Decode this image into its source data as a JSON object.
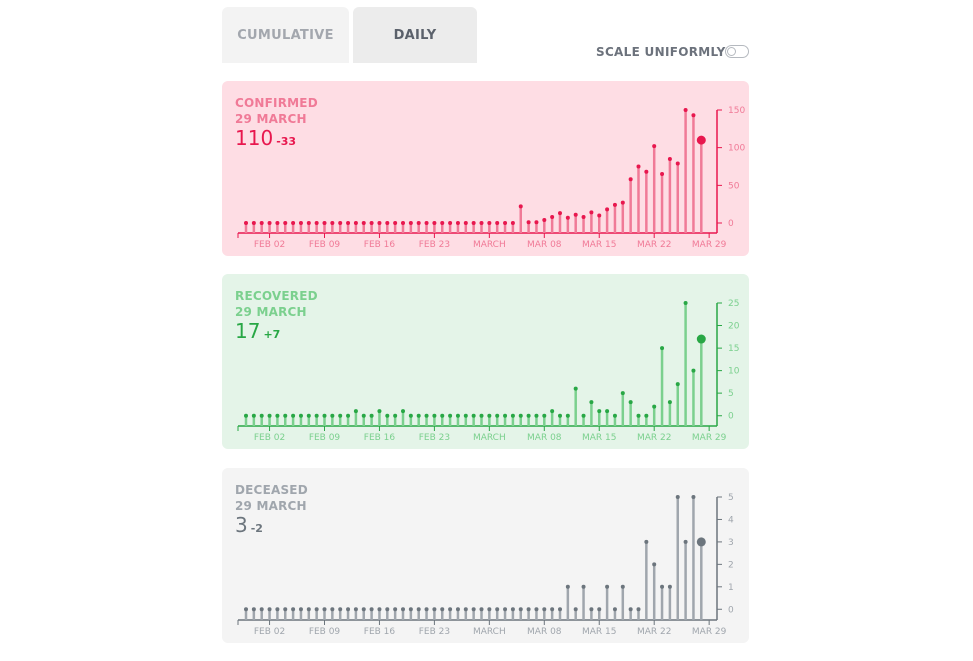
{
  "tabs": {
    "cumulative": "CUMULATIVE",
    "daily": "DAILY"
  },
  "scale_uniformly": {
    "label": "SCALE UNIFORMLY",
    "on": false
  },
  "chart_data": [
    {
      "type": "bar",
      "name": "CONFIRMED",
      "date_label": "29 MARCH",
      "current_value": "110",
      "delta": "-33",
      "color": "#e8174e",
      "bg": "#fedde4",
      "light": "#f07a97",
      "ylim": [
        -8,
        150
      ],
      "yticks": [
        0,
        50,
        100,
        150
      ],
      "xtick_labels": [
        "FEB 02",
        "FEB 09",
        "FEB 16",
        "FEB 23",
        "MARCH",
        "MAR 08",
        "MAR 15",
        "MAR 22",
        "MAR 29"
      ],
      "values": [
        0,
        0,
        0,
        0,
        0,
        0,
        0,
        0,
        0,
        0,
        0,
        0,
        0,
        0,
        0,
        0,
        0,
        0,
        0,
        0,
        0,
        0,
        0,
        0,
        0,
        0,
        0,
        0,
        0,
        0,
        0,
        0,
        0,
        0,
        0,
        22,
        1,
        1,
        4,
        8,
        13,
        7,
        11,
        8,
        14,
        10,
        18,
        24,
        27,
        58,
        75,
        68,
        102,
        65,
        85,
        79,
        150,
        143,
        110
      ]
    },
    {
      "type": "bar",
      "name": "RECOVERED",
      "date_label": "29 MARCH",
      "current_value": "17",
      "delta": "+7",
      "color": "#28a745",
      "bg": "#e4f4e8",
      "light": "#7bd08e",
      "ylim": [
        -1.4,
        25
      ],
      "yticks": [
        0,
        5,
        10,
        15,
        20,
        25
      ],
      "xtick_labels": [
        "FEB 02",
        "FEB 09",
        "FEB 16",
        "FEB 23",
        "MARCH",
        "MAR 08",
        "MAR 15",
        "MAR 22",
        "MAR 29"
      ],
      "values": [
        0,
        0,
        0,
        0,
        0,
        0,
        0,
        0,
        0,
        0,
        0,
        0,
        0,
        0,
        1,
        0,
        0,
        1,
        0,
        0,
        1,
        0,
        0,
        0,
        0,
        0,
        0,
        0,
        0,
        0,
        0,
        0,
        0,
        0,
        0,
        0,
        0,
        0,
        0,
        1,
        0,
        0,
        6,
        0,
        3,
        1,
        1,
        0,
        5,
        3,
        0,
        0,
        2,
        15,
        3,
        7,
        25,
        10,
        17
      ]
    },
    {
      "type": "bar",
      "name": "DECEASED",
      "date_label": "29 MARCH",
      "current_value": "3",
      "delta": "-2",
      "color": "#6c757d",
      "bg": "#f4f4f4",
      "light": "#a0a6ad",
      "ylim": [
        -0.3,
        5
      ],
      "yticks": [
        0,
        1,
        2,
        3,
        4,
        5
      ],
      "xtick_labels": [
        "FEB 02",
        "FEB 09",
        "FEB 16",
        "FEB 23",
        "MARCH",
        "MAR 08",
        "MAR 15",
        "MAR 22",
        "MAR 29"
      ],
      "values": [
        0,
        0,
        0,
        0,
        0,
        0,
        0,
        0,
        0,
        0,
        0,
        0,
        0,
        0,
        0,
        0,
        0,
        0,
        0,
        0,
        0,
        0,
        0,
        0,
        0,
        0,
        0,
        0,
        0,
        0,
        0,
        0,
        0,
        0,
        0,
        0,
        0,
        0,
        0,
        0,
        0,
        1,
        0,
        1,
        0,
        0,
        1,
        0,
        1,
        0,
        0,
        3,
        2,
        1,
        1,
        5,
        3,
        5,
        3
      ]
    }
  ]
}
